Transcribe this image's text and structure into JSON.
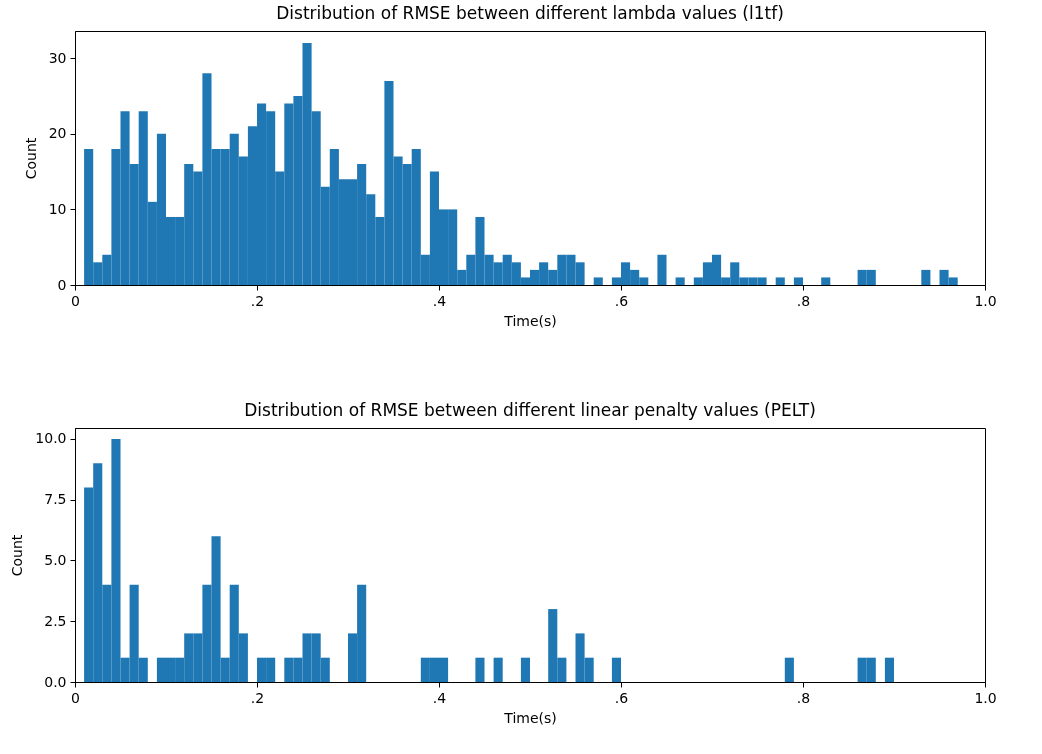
{
  "chart_data": [
    {
      "type": "histogram",
      "title": "Distribution of RMSE between different lambda values (l1tf)",
      "xlabel": "Time(s)",
      "ylabel": "Count",
      "color": "#1f77b4",
      "bins": [
        0.01,
        0.02,
        0.03,
        0.04,
        0.05,
        0.06,
        0.07,
        0.08,
        0.09,
        0.1,
        0.11,
        0.12,
        0.13,
        0.14,
        0.15,
        0.16,
        0.17,
        0.18,
        0.19,
        0.2,
        0.21,
        0.22,
        0.23,
        0.24,
        0.25,
        0.26,
        0.27,
        0.28,
        0.29,
        0.3,
        0.31,
        0.32,
        0.33,
        0.34,
        0.35,
        0.36,
        0.37,
        0.38,
        0.39,
        0.4,
        0.41,
        0.42,
        0.43,
        0.44,
        0.45,
        0.46,
        0.47,
        0.48,
        0.49,
        0.5,
        0.51,
        0.52,
        0.53,
        0.54,
        0.55,
        0.56,
        0.57,
        0.58,
        0.59,
        0.6,
        0.61,
        0.62,
        0.63,
        0.64,
        0.65,
        0.66,
        0.67,
        0.68,
        0.69,
        0.7,
        0.71,
        0.72,
        0.73,
        0.74,
        0.75,
        0.76,
        0.77,
        0.78,
        0.79,
        0.8,
        0.81,
        0.82,
        0.83,
        0.84,
        0.85,
        0.86,
        0.87,
        0.88,
        0.89,
        0.9,
        0.91,
        0.92,
        0.93,
        0.94,
        0.95,
        0.96,
        0.97
      ],
      "values": [
        18,
        3,
        4,
        18,
        23,
        16,
        23,
        11,
        20,
        9,
        9,
        16,
        15,
        28,
        18,
        18,
        20,
        17,
        21,
        24,
        23,
        15,
        24,
        25,
        32,
        23,
        13,
        18,
        14,
        14,
        16,
        12,
        9,
        27,
        17,
        16,
        18,
        4,
        15,
        10,
        10,
        2,
        4,
        9,
        4,
        3,
        4,
        3,
        1,
        2,
        3,
        2,
        4,
        4,
        3,
        0,
        1,
        0,
        1,
        3,
        2,
        1,
        0,
        4,
        0,
        1,
        0,
        1,
        3,
        4,
        1,
        3,
        1,
        1,
        1,
        0,
        1,
        0,
        1,
        0,
        0,
        1,
        0,
        0,
        0,
        2,
        2,
        0,
        0,
        0,
        0,
        0,
        2,
        0,
        2,
        1
      ],
      "xlim": [
        0,
        1
      ],
      "xticks": [
        {
          "value": 0,
          "label": "0"
        },
        {
          "value": 0.2,
          "label": ".2"
        },
        {
          "value": 0.4,
          "label": ".4"
        },
        {
          "value": 0.6,
          "label": ".6"
        },
        {
          "value": 0.8,
          "label": ".8"
        },
        {
          "value": 1,
          "label": "1.0"
        }
      ],
      "ylim": [
        0,
        33.6
      ],
      "yticks": [
        0,
        10,
        20,
        30
      ]
    },
    {
      "type": "histogram",
      "title": "Distribution of RMSE between different linear penalty values (PELT)",
      "xlabel": "Time(s)",
      "ylabel": "Count",
      "color": "#1f77b4",
      "bins": [
        0.01,
        0.02,
        0.03,
        0.04,
        0.05,
        0.06,
        0.07,
        0.08,
        0.09,
        0.1,
        0.11,
        0.12,
        0.13,
        0.14,
        0.15,
        0.16,
        0.17,
        0.18,
        0.19,
        0.2,
        0.21,
        0.22,
        0.23,
        0.24,
        0.25,
        0.26,
        0.27,
        0.28,
        0.29,
        0.3,
        0.31,
        0.32,
        0.33,
        0.34,
        0.35,
        0.36,
        0.37,
        0.38,
        0.39,
        0.4,
        0.41,
        0.42,
        0.43,
        0.44,
        0.45,
        0.46,
        0.47,
        0.48,
        0.49,
        0.5,
        0.51,
        0.52,
        0.53,
        0.54,
        0.55,
        0.56,
        0.57,
        0.58,
        0.59,
        0.6,
        0.61,
        0.62,
        0.63,
        0.64,
        0.65,
        0.66,
        0.67,
        0.68,
        0.69,
        0.7,
        0.71,
        0.72,
        0.73,
        0.74,
        0.75,
        0.76,
        0.77,
        0.78,
        0.79,
        0.8,
        0.81,
        0.82,
        0.83,
        0.84,
        0.85,
        0.86,
        0.87,
        0.88,
        0.89,
        0.9
      ],
      "values": [
        8,
        9,
        4,
        10,
        1,
        4,
        1,
        0,
        1,
        1,
        1,
        2,
        2,
        4,
        6,
        1,
        4,
        2,
        0,
        1,
        1,
        0,
        1,
        1,
        2,
        2,
        1,
        0,
        0,
        2,
        4,
        0,
        0,
        0,
        0,
        0,
        0,
        1,
        1,
        1,
        0,
        0,
        0,
        1,
        0,
        1,
        0,
        0,
        1,
        0,
        0,
        3,
        1,
        0,
        2,
        1,
        0,
        0,
        1,
        0,
        0,
        0,
        0,
        0,
        0,
        0,
        0,
        0,
        0,
        0,
        0,
        0,
        0,
        0,
        0,
        0,
        0,
        1,
        0,
        0,
        0,
        0,
        0,
        0,
        0,
        1,
        1,
        0,
        1
      ],
      "xlim": [
        0,
        1
      ],
      "xticks": [
        {
          "value": 0,
          "label": "0"
        },
        {
          "value": 0.2,
          "label": ".2"
        },
        {
          "value": 0.4,
          "label": ".4"
        },
        {
          "value": 0.6,
          "label": ".6"
        },
        {
          "value": 0.8,
          "label": ".8"
        },
        {
          "value": 1,
          "label": "1.0"
        }
      ],
      "ylim": [
        0,
        10.45
      ],
      "yticks": [
        {
          "value": 0,
          "label": "0.0"
        },
        {
          "value": 2.5,
          "label": "2.5"
        },
        {
          "value": 5,
          "label": "5.0"
        },
        {
          "value": 7.5,
          "label": "7.5"
        },
        {
          "value": 10,
          "label": "10.0"
        }
      ]
    }
  ]
}
